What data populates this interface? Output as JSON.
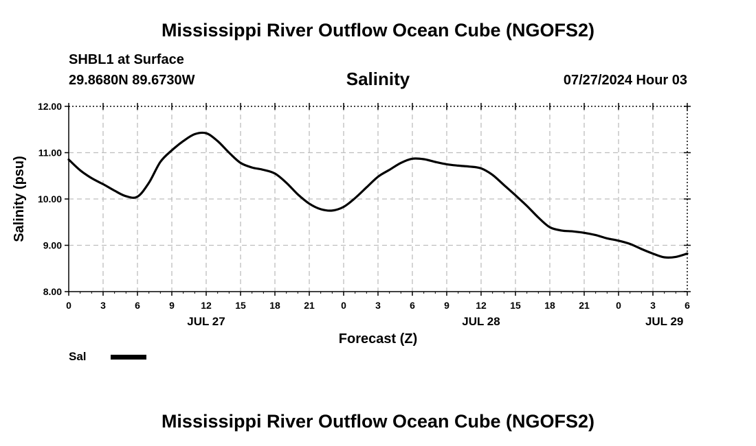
{
  "header": {
    "title": "Mississippi River Outflow Ocean Cube (NGOFS2)",
    "station": "SHBL1 at Surface",
    "coordinates": "29.8680N  89.6730W",
    "plot_title": "Salinity",
    "datetime": "07/27/2024 Hour 03"
  },
  "footer": {
    "title": "Mississippi River Outflow Ocean Cube (NGOFS2)"
  },
  "legend": {
    "label": "Sal",
    "color": "#000000"
  },
  "chart_data": {
    "type": "line",
    "title": "Salinity",
    "xlabel": "Forecast (Z)",
    "ylabel": "Salinity (psu)",
    "xlim": [
      0,
      54
    ],
    "ylim": [
      8.0,
      12.0
    ],
    "grid": true,
    "x_ticks": [
      0,
      3,
      6,
      9,
      12,
      15,
      18,
      21,
      24,
      27,
      30,
      33,
      36,
      39,
      42,
      45,
      48,
      51,
      54
    ],
    "x_tick_labels": [
      "0",
      "3",
      "6",
      "9",
      "12",
      "15",
      "18",
      "21",
      "0",
      "3",
      "6",
      "9",
      "12",
      "15",
      "18",
      "21",
      "0",
      "3",
      "6"
    ],
    "date_labels": [
      {
        "x": 12,
        "label": "JUL 27"
      },
      {
        "x": 36,
        "label": "JUL 28"
      },
      {
        "x": 52,
        "label": "JUL 29"
      }
    ],
    "y_ticks": [
      8.0,
      9.0,
      10.0,
      11.0,
      12.0
    ],
    "y_tick_labels": [
      "8.00",
      "9.00",
      "10.00",
      "11.00",
      "12.00"
    ],
    "series": [
      {
        "name": "Sal",
        "color": "#000000",
        "x": [
          0,
          1,
          2,
          3,
          4,
          5,
          6,
          7,
          8,
          9,
          10,
          11,
          12,
          13,
          14,
          15,
          16,
          17,
          18,
          19,
          20,
          21,
          22,
          23,
          24,
          25,
          26,
          27,
          28,
          29,
          30,
          31,
          32,
          33,
          34,
          35,
          36,
          37,
          38,
          39,
          40,
          41,
          42,
          43,
          44,
          45,
          46,
          47,
          48,
          49,
          50,
          51,
          52,
          53,
          54
        ],
        "values": [
          10.85,
          10.62,
          10.45,
          10.32,
          10.18,
          10.06,
          10.05,
          10.35,
          10.8,
          11.05,
          11.25,
          11.4,
          11.42,
          11.25,
          11.0,
          10.78,
          10.68,
          10.63,
          10.55,
          10.35,
          10.1,
          9.9,
          9.78,
          9.75,
          9.83,
          10.02,
          10.25,
          10.48,
          10.63,
          10.78,
          10.87,
          10.86,
          10.8,
          10.75,
          10.72,
          10.7,
          10.66,
          10.52,
          10.3,
          10.08,
          9.85,
          9.6,
          9.39,
          9.32,
          9.3,
          9.27,
          9.22,
          9.15,
          9.1,
          9.03,
          8.92,
          8.82,
          8.74,
          8.75,
          8.82
        ]
      }
    ]
  }
}
